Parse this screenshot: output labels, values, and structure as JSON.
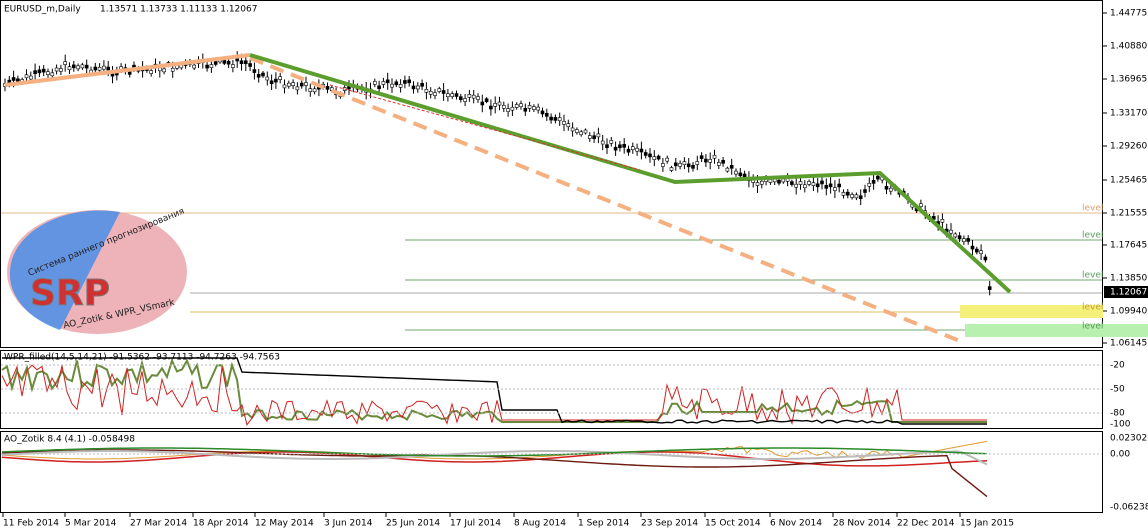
{
  "header": {
    "symbol": "EURUSD_m,Daily",
    "ohlc": "1.13571 1.13733 1.11133 1.12067"
  },
  "price_axis": [
    "1.44775",
    "1.40880",
    "1.36965",
    "1.33170",
    "1.29260",
    "1.25465",
    "1.21555",
    "1.17645",
    "1.13850",
    "1.09940",
    "1.06145"
  ],
  "current_price": "1.12067",
  "levels": [
    "level",
    "level",
    "level",
    "level",
    "level"
  ],
  "logo": {
    "big": "SRP",
    "top": "Система раннего прогнозирования",
    "bottom": "AO_Zotik & WPR_VSmark"
  },
  "wpr": {
    "title": "WPR_filled(14,5,14,21) -91.5362 -93.7113 -94.7263 -94.7563",
    "axis": [
      "-20",
      "-50",
      "-80",
      "-100"
    ]
  },
  "ao": {
    "title": "AO_Zotik 8.4 (4.1) -0.058498",
    "axis": [
      "0.023026",
      "0.00",
      "-0.06238"
    ]
  },
  "dates": [
    "11 Feb 2014",
    "5 Mar 2014",
    "27 Mar 2014",
    "18 Apr 2014",
    "12 May 2014",
    "3 Jun 2014",
    "25 Jun 2014",
    "17 Jul 2014",
    "8 Aug 2014",
    "1 Sep 2014",
    "23 Sep 2014",
    "15 Oct 2014",
    "6 Nov 2014",
    "28 Nov 2014",
    "22 Dec 2014",
    "15 Jan 2015"
  ]
}
